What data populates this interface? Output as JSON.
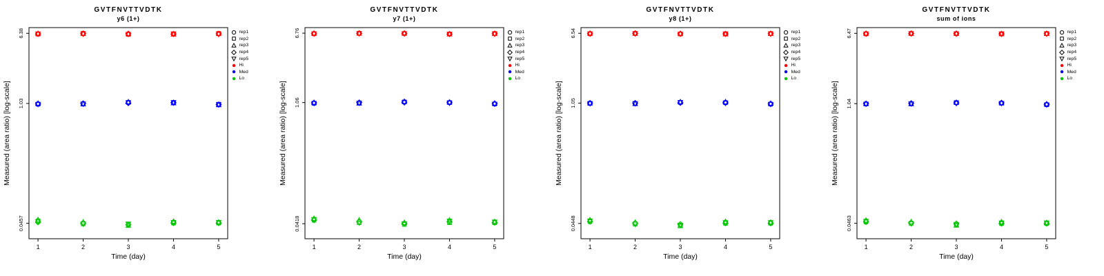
{
  "page": {
    "background": "#FFFFFF"
  },
  "legend": {
    "reps": [
      {
        "label": "rep1",
        "marker": "circle"
      },
      {
        "label": "rep2",
        "marker": "square"
      },
      {
        "label": "rep3",
        "marker": "triangle-up"
      },
      {
        "label": "rep4",
        "marker": "diamond"
      },
      {
        "label": "rep5",
        "marker": "triangle-down"
      }
    ],
    "levels": [
      {
        "label": "Hi",
        "color": "#FF0000"
      },
      {
        "label": "Med",
        "color": "#0000FF"
      },
      {
        "label": "Lo",
        "color": "#00C400"
      }
    ]
  },
  "chart_data": [
    {
      "type": "scatter",
      "title": "GVTFNVTTVDTK",
      "subtitle": "y6 (1+)",
      "xlabel": "Time (day)",
      "ylabel": "Measured (area ratio) [log-scale]",
      "x": [
        1,
        2,
        3,
        4,
        5
      ],
      "x_ticks": [
        "1",
        "2",
        "3",
        "4",
        "5"
      ],
      "y_scale": "log",
      "ylim": [
        0.0306,
        7.4
      ],
      "yticks": [
        6.38,
        1.03,
        0.0457
      ],
      "ytick_labels": [
        "6.38",
        "1.03",
        "0.0457"
      ],
      "series": [
        {
          "name": "Hi",
          "color": "#FF0000",
          "reps": [
            [
              6.3,
              6.35,
              6.25,
              6.28,
              6.33
            ],
            [
              6.25,
              6.38,
              6.2,
              6.3,
              6.36
            ],
            [
              6.33,
              6.3,
              6.28,
              6.22,
              6.3
            ],
            [
              6.28,
              6.33,
              6.31,
              6.26,
              6.28
            ],
            [
              6.31,
              6.28,
              6.24,
              6.31,
              6.25
            ]
          ]
        },
        {
          "name": "Med",
          "color": "#0000FF",
          "reps": [
            [
              1.02,
              1.03,
              1.05,
              1.06,
              1.0
            ],
            [
              1.01,
              1.02,
              1.06,
              1.05,
              1.01
            ],
            [
              1.03,
              1.01,
              1.07,
              1.04,
              0.99
            ],
            [
              1.02,
              1.03,
              1.04,
              1.05,
              1.0
            ],
            [
              1.01,
              1.02,
              1.05,
              1.06,
              1.0
            ]
          ]
        },
        {
          "name": "Lo",
          "color": "#00C400",
          "reps": [
            [
              0.049,
              0.046,
              0.044,
              0.047,
              0.047
            ],
            [
              0.048,
              0.045,
              0.045,
              0.046,
              0.046
            ],
            [
              0.05,
              0.047,
              0.043,
              0.048,
              0.047
            ],
            [
              0.047,
              0.046,
              0.044,
              0.046,
              0.046
            ],
            [
              0.048,
              0.045,
              0.045,
              0.047,
              0.047
            ]
          ]
        }
      ]
    },
    {
      "type": "scatter",
      "title": "GVTFNVTTVDTK",
      "subtitle": "y7 (1+)",
      "xlabel": "Time (day)",
      "ylabel": "Measured (area ratio) [log-scale]",
      "x": [
        1,
        2,
        3,
        4,
        5
      ],
      "x_ticks": [
        "1",
        "2",
        "3",
        "4",
        "5"
      ],
      "y_scale": "log",
      "ylim": [
        0.028,
        7.84
      ],
      "yticks": [
        6.76,
        1.06,
        0.0418
      ],
      "ytick_labels": [
        "6.76",
        "1.06",
        "0.0418"
      ],
      "series": [
        {
          "name": "Hi",
          "color": "#FF0000",
          "reps": [
            [
              6.7,
              6.76,
              6.72,
              6.6,
              6.68
            ],
            [
              6.65,
              6.74,
              6.7,
              6.62,
              6.7
            ],
            [
              6.72,
              6.7,
              6.74,
              6.58,
              6.65
            ],
            [
              6.68,
              6.72,
              6.7,
              6.6,
              6.66
            ],
            [
              6.66,
              6.7,
              6.68,
              6.62,
              6.64
            ]
          ]
        },
        {
          "name": "Med",
          "color": "#0000FF",
          "reps": [
            [
              1.05,
              1.05,
              1.07,
              1.06,
              1.03
            ],
            [
              1.04,
              1.05,
              1.08,
              1.06,
              1.02
            ],
            [
              1.06,
              1.04,
              1.09,
              1.07,
              1.04
            ],
            [
              1.05,
              1.06,
              1.07,
              1.06,
              1.03
            ],
            [
              1.04,
              1.05,
              1.06,
              1.05,
              1.02
            ]
          ]
        },
        {
          "name": "Lo",
          "color": "#00C400",
          "reps": [
            [
              0.047,
              0.044,
              0.042,
              0.044,
              0.044
            ],
            [
              0.046,
              0.043,
              0.041,
              0.043,
              0.043
            ],
            [
              0.048,
              0.046,
              0.043,
              0.046,
              0.044
            ],
            [
              0.046,
              0.044,
              0.042,
              0.044,
              0.043
            ],
            [
              0.047,
              0.043,
              0.042,
              0.045,
              0.044
            ]
          ]
        }
      ]
    },
    {
      "type": "scatter",
      "title": "GVTFNVTTVDTK",
      "subtitle": "y8 (1+)",
      "xlabel": "Time (day)",
      "ylabel": "Measured (area ratio) [log-scale]",
      "x": [
        1,
        2,
        3,
        4,
        5
      ],
      "x_ticks": [
        "1",
        "2",
        "3",
        "4",
        "5"
      ],
      "y_scale": "log",
      "ylim": [
        0.03,
        7.59
      ],
      "yticks": [
        6.54,
        1.05,
        0.0448
      ],
      "ytick_labels": [
        "6.54",
        "1.05",
        "0.0448"
      ],
      "series": [
        {
          "name": "Hi",
          "color": "#FF0000",
          "reps": [
            [
              6.5,
              6.54,
              6.45,
              6.44,
              6.48
            ],
            [
              6.45,
              6.52,
              6.42,
              6.46,
              6.5
            ],
            [
              6.52,
              6.5,
              6.48,
              6.4,
              6.46
            ],
            [
              6.48,
              6.52,
              6.46,
              6.44,
              6.47
            ],
            [
              6.46,
              6.5,
              6.44,
              6.45,
              6.44
            ]
          ]
        },
        {
          "name": "Med",
          "color": "#0000FF",
          "reps": [
            [
              1.05,
              1.04,
              1.06,
              1.07,
              1.03
            ],
            [
              1.04,
              1.04,
              1.07,
              1.06,
              1.02
            ],
            [
              1.05,
              1.03,
              1.08,
              1.08,
              1.04
            ],
            [
              1.05,
              1.05,
              1.06,
              1.06,
              1.03
            ],
            [
              1.04,
              1.04,
              1.07,
              1.05,
              1.02
            ]
          ]
        },
        {
          "name": "Lo",
          "color": "#00C400",
          "reps": [
            [
              0.048,
              0.045,
              0.043,
              0.046,
              0.046
            ],
            [
              0.047,
              0.044,
              0.042,
              0.045,
              0.045
            ],
            [
              0.049,
              0.046,
              0.042,
              0.047,
              0.046
            ],
            [
              0.047,
              0.045,
              0.044,
              0.045,
              0.045
            ],
            [
              0.048,
              0.044,
              0.043,
              0.046,
              0.046
            ]
          ]
        }
      ]
    },
    {
      "type": "scatter",
      "title": "GVTFNVTTVDTK",
      "subtitle": "sum of ions",
      "xlabel": "Time (day)",
      "ylabel": "Measured (area ratio) [log-scale]",
      "x": [
        1,
        2,
        3,
        4,
        5
      ],
      "x_ticks": [
        "1",
        "2",
        "3",
        "4",
        "5"
      ],
      "y_scale": "log",
      "ylim": [
        0.031,
        7.51
      ],
      "yticks": [
        6.47,
        1.04,
        0.0463
      ],
      "ytick_labels": [
        "6.47",
        "1.04",
        "0.0463"
      ],
      "series": [
        {
          "name": "Hi",
          "color": "#FF0000",
          "reps": [
            [
              6.42,
              6.47,
              6.4,
              6.38,
              6.42
            ],
            [
              6.38,
              6.45,
              6.42,
              6.4,
              6.44
            ],
            [
              6.44,
              6.42,
              6.44,
              6.36,
              6.4
            ],
            [
              6.4,
              6.44,
              6.42,
              6.38,
              6.41
            ],
            [
              6.39,
              6.43,
              6.4,
              6.4,
              6.38
            ]
          ]
        },
        {
          "name": "Med",
          "color": "#0000FF",
          "reps": [
            [
              1.04,
              1.04,
              1.06,
              1.06,
              1.02
            ],
            [
              1.03,
              1.04,
              1.07,
              1.05,
              1.01
            ],
            [
              1.04,
              1.03,
              1.07,
              1.06,
              1.03
            ],
            [
              1.04,
              1.05,
              1.06,
              1.06,
              1.02
            ],
            [
              1.03,
              1.04,
              1.05,
              1.05,
              1.01
            ]
          ]
        },
        {
          "name": "Lo",
          "color": "#00C400",
          "reps": [
            [
              0.049,
              0.047,
              0.045,
              0.047,
              0.047
            ],
            [
              0.048,
              0.046,
              0.044,
              0.046,
              0.046
            ],
            [
              0.05,
              0.048,
              0.044,
              0.048,
              0.047
            ],
            [
              0.048,
              0.047,
              0.046,
              0.046,
              0.046
            ],
            [
              0.049,
              0.046,
              0.045,
              0.047,
              0.047
            ]
          ]
        }
      ]
    }
  ]
}
